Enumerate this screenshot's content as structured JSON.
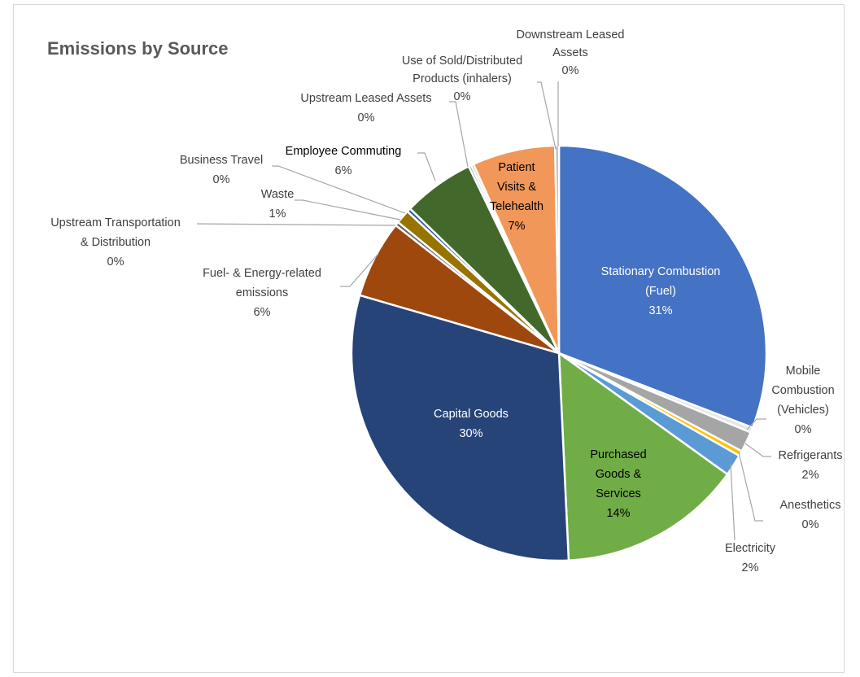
{
  "chart_data": {
    "type": "pie",
    "title": "Emissions by Source",
    "slices": [
      {
        "label": [
          "Stationary Combustion",
          "(Fuel)"
        ],
        "pct": "31%",
        "value": 31.0,
        "color": "#4472C4",
        "inside": true,
        "text_color": "#ffffff"
      },
      {
        "label": [
          "Mobile",
          "Combustion",
          "(Vehicles)"
        ],
        "pct": "0%",
        "value": 0.4,
        "color": "#E7E6E6",
        "inside": false
      },
      {
        "label": [
          "Refrigerants"
        ],
        "pct": "2%",
        "value": 1.6,
        "color": "#A5A5A5",
        "inside": false
      },
      {
        "label": [
          "Anesthetics"
        ],
        "pct": "0%",
        "value": 0.4,
        "color": "#FFC000",
        "inside": false
      },
      {
        "label": [
          "Electricity"
        ],
        "pct": "2%",
        "value": 1.7,
        "color": "#5B9BD5",
        "inside": false
      },
      {
        "label": [
          "Purchased",
          "Goods &",
          "Services"
        ],
        "pct": "14%",
        "value": 14.4,
        "color": "#70AD47",
        "inside": true,
        "text_color": "#000000"
      },
      {
        "label": [
          "Capital Goods"
        ],
        "pct": "30%",
        "value": 30.4,
        "color": "#264478",
        "inside": true,
        "text_color": "#ffffff"
      },
      {
        "label": [
          "Fuel- & Energy-related",
          "emissions"
        ],
        "pct": "6%",
        "value": 6.1,
        "color": "#9E480E",
        "inside": false
      },
      {
        "label": [
          "Upstream Transportation",
          "& Distribution"
        ],
        "pct": "0%",
        "value": 0.3,
        "color": "#636363",
        "inside": false
      },
      {
        "label": [
          "Waste"
        ],
        "pct": "1%",
        "value": 1.1,
        "color": "#997300",
        "inside": false
      },
      {
        "label": [
          "Business Travel"
        ],
        "pct": "0%",
        "value": 0.3,
        "color": "#255E91",
        "inside": false
      },
      {
        "label": [
          "Employee Commuting"
        ],
        "pct": "6%",
        "value": 5.6,
        "color": "#43682B",
        "inside": false,
        "bold_label": true
      },
      {
        "label": [
          "Upstream Leased Assets"
        ],
        "pct": "0%",
        "value": 0.2,
        "color": "#698ED0",
        "inside": false
      },
      {
        "label": [
          "Use of Sold/Distributed",
          "Products (inhalers)"
        ],
        "pct": "0%",
        "value": 0.2,
        "color": "#F1975A",
        "inside": false
      },
      {
        "label": [
          "Patient",
          "Visits &",
          "Telehealth"
        ],
        "pct": "7%",
        "value": 6.5,
        "color": "#F1975A",
        "inside": true,
        "text_color": "#000000"
      },
      {
        "label": [
          "Downstream Leased",
          "Assets"
        ],
        "pct": "0%",
        "value": 0.3,
        "color": "#B7B7B7",
        "inside": false
      }
    ],
    "legend": "none"
  }
}
